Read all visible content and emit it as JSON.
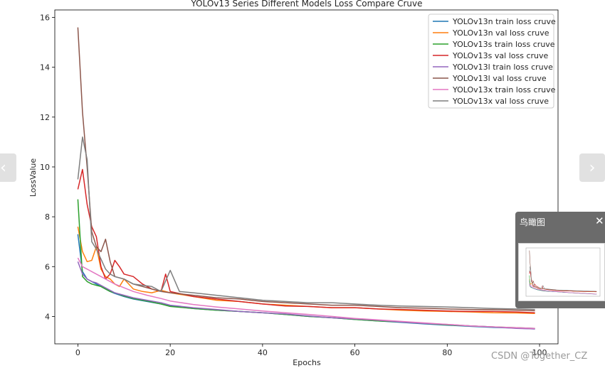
{
  "chart_data": {
    "type": "line",
    "title": "YOLOv13 Series Different Models Loss Compare Cruve",
    "xlabel": "Epochs",
    "ylabel": "LossValue",
    "xlim": [
      -5,
      104
    ],
    "ylim": [
      2.9,
      16.3
    ],
    "xticks": [
      0,
      20,
      40,
      60,
      80,
      100
    ],
    "yticks": [
      4,
      6,
      8,
      10,
      12,
      14,
      16
    ],
    "grid": false,
    "legend_position": "top-right",
    "series": [
      {
        "name": "YOLOv13n train loss cruve",
        "color": "#1f77b4",
        "points": [
          [
            0,
            7.3
          ],
          [
            1,
            5.8
          ],
          [
            2,
            5.5
          ],
          [
            3,
            5.4
          ],
          [
            4,
            5.3
          ],
          [
            5,
            5.2
          ],
          [
            6,
            5.1
          ],
          [
            7,
            5.0
          ],
          [
            8,
            4.92
          ],
          [
            10,
            4.8
          ],
          [
            12,
            4.7
          ],
          [
            15,
            4.6
          ],
          [
            18,
            4.5
          ],
          [
            20,
            4.42
          ],
          [
            25,
            4.32
          ],
          [
            30,
            4.25
          ],
          [
            35,
            4.2
          ],
          [
            40,
            4.15
          ],
          [
            45,
            4.08
          ],
          [
            50,
            4.0
          ],
          [
            55,
            3.95
          ],
          [
            60,
            3.88
          ],
          [
            65,
            3.82
          ],
          [
            70,
            3.76
          ],
          [
            75,
            3.7
          ],
          [
            80,
            3.65
          ],
          [
            85,
            3.6
          ],
          [
            90,
            3.56
          ],
          [
            95,
            3.53
          ],
          [
            99,
            3.5
          ]
        ]
      },
      {
        "name": "YOLOv13n val loss cruve",
        "color": "#ff7f0e",
        "points": [
          [
            0,
            7.6
          ],
          [
            1,
            6.6
          ],
          [
            2,
            6.2
          ],
          [
            3,
            6.25
          ],
          [
            4,
            6.8
          ],
          [
            5,
            5.9
          ],
          [
            6,
            5.6
          ],
          [
            7,
            5.5
          ],
          [
            8,
            5.3
          ],
          [
            9,
            5.2
          ],
          [
            10,
            5.5
          ],
          [
            12,
            5.1
          ],
          [
            14,
            5.0
          ],
          [
            16,
            4.95
          ],
          [
            18,
            5.05
          ],
          [
            20,
            4.95
          ],
          [
            25,
            4.8
          ],
          [
            30,
            4.65
          ],
          [
            35,
            4.6
          ],
          [
            40,
            4.5
          ],
          [
            45,
            4.45
          ],
          [
            50,
            4.4
          ],
          [
            55,
            4.35
          ],
          [
            60,
            4.35
          ],
          [
            65,
            4.3
          ],
          [
            70,
            4.25
          ],
          [
            75,
            4.22
          ],
          [
            80,
            4.2
          ],
          [
            85,
            4.18
          ],
          [
            90,
            4.15
          ],
          [
            95,
            4.14
          ],
          [
            99,
            4.12
          ]
        ]
      },
      {
        "name": "YOLOv13s train loss cruve",
        "color": "#2ca02c",
        "points": [
          [
            0,
            8.7
          ],
          [
            1,
            5.6
          ],
          [
            2,
            5.4
          ],
          [
            3,
            5.3
          ],
          [
            4,
            5.25
          ],
          [
            5,
            5.2
          ],
          [
            6,
            5.1
          ],
          [
            7,
            5.0
          ],
          [
            8,
            4.95
          ],
          [
            10,
            4.82
          ],
          [
            12,
            4.72
          ],
          [
            15,
            4.62
          ],
          [
            18,
            4.5
          ],
          [
            20,
            4.4
          ],
          [
            25,
            4.32
          ],
          [
            30,
            4.25
          ],
          [
            35,
            4.2
          ],
          [
            40,
            4.15
          ],
          [
            45,
            4.08
          ],
          [
            50,
            4.0
          ],
          [
            55,
            3.95
          ],
          [
            60,
            3.88
          ],
          [
            65,
            3.82
          ],
          [
            70,
            3.78
          ],
          [
            75,
            3.72
          ],
          [
            80,
            3.66
          ],
          [
            85,
            3.62
          ],
          [
            90,
            3.58
          ],
          [
            95,
            3.55
          ],
          [
            99,
            3.52
          ]
        ]
      },
      {
        "name": "YOLOv13s val loss cruve",
        "color": "#d62728",
        "points": [
          [
            0,
            9.1
          ],
          [
            1,
            9.9
          ],
          [
            2,
            8.5
          ],
          [
            3,
            7.6
          ],
          [
            4,
            7.2
          ],
          [
            5,
            6.0
          ],
          [
            6,
            5.5
          ],
          [
            7,
            5.7
          ],
          [
            8,
            6.25
          ],
          [
            9,
            6.0
          ],
          [
            10,
            5.7
          ],
          [
            12,
            5.6
          ],
          [
            14,
            5.3
          ],
          [
            16,
            5.1
          ],
          [
            18,
            5.0
          ],
          [
            19,
            5.7
          ],
          [
            20,
            5.0
          ],
          [
            25,
            4.8
          ],
          [
            30,
            4.7
          ],
          [
            35,
            4.6
          ],
          [
            40,
            4.5
          ],
          [
            45,
            4.42
          ],
          [
            50,
            4.4
          ],
          [
            55,
            4.35
          ],
          [
            60,
            4.35
          ],
          [
            65,
            4.3
          ],
          [
            70,
            4.28
          ],
          [
            75,
            4.25
          ],
          [
            80,
            4.22
          ],
          [
            85,
            4.2
          ],
          [
            90,
            4.2
          ],
          [
            95,
            4.18
          ],
          [
            99,
            4.15
          ]
        ]
      },
      {
        "name": "YOLOv13l train loss cruve",
        "color": "#9467bd",
        "points": [
          [
            0,
            6.2
          ],
          [
            1,
            5.7
          ],
          [
            2,
            5.5
          ],
          [
            3,
            5.4
          ],
          [
            4,
            5.35
          ],
          [
            5,
            5.25
          ],
          [
            6,
            5.15
          ],
          [
            7,
            5.05
          ],
          [
            8,
            4.95
          ],
          [
            10,
            4.85
          ],
          [
            12,
            4.75
          ],
          [
            15,
            4.65
          ],
          [
            18,
            4.55
          ],
          [
            20,
            4.45
          ],
          [
            25,
            4.35
          ],
          [
            30,
            4.28
          ],
          [
            35,
            4.2
          ],
          [
            40,
            4.15
          ],
          [
            45,
            4.1
          ],
          [
            50,
            4.02
          ],
          [
            55,
            3.95
          ],
          [
            60,
            3.9
          ],
          [
            65,
            3.85
          ],
          [
            70,
            3.78
          ],
          [
            75,
            3.72
          ],
          [
            80,
            3.68
          ],
          [
            85,
            3.62
          ],
          [
            90,
            3.58
          ],
          [
            95,
            3.52
          ],
          [
            99,
            3.5
          ]
        ]
      },
      {
        "name": "YOLOv13l val loss cruve",
        "color": "#8c564b",
        "points": [
          [
            0,
            15.6
          ],
          [
            1,
            12.2
          ],
          [
            2,
            10.0
          ],
          [
            3,
            7.4
          ],
          [
            4,
            6.8
          ],
          [
            5,
            6.6
          ],
          [
            6,
            7.1
          ],
          [
            7,
            6.2
          ],
          [
            8,
            5.6
          ],
          [
            10,
            5.5
          ],
          [
            12,
            5.3
          ],
          [
            14,
            5.2
          ],
          [
            16,
            5.1
          ],
          [
            18,
            5.0
          ],
          [
            20,
            4.95
          ],
          [
            25,
            4.85
          ],
          [
            30,
            4.75
          ],
          [
            35,
            4.7
          ],
          [
            40,
            4.6
          ],
          [
            45,
            4.55
          ],
          [
            50,
            4.5
          ],
          [
            55,
            4.45
          ],
          [
            60,
            4.45
          ],
          [
            65,
            4.4
          ],
          [
            70,
            4.35
          ],
          [
            75,
            4.33
          ],
          [
            80,
            4.3
          ],
          [
            85,
            4.28
          ],
          [
            90,
            4.27
          ],
          [
            95,
            4.25
          ],
          [
            99,
            4.23
          ]
        ]
      },
      {
        "name": "YOLOv13x train loss cruve",
        "color": "#e377c2",
        "points": [
          [
            0,
            6.35
          ],
          [
            1,
            6.0
          ],
          [
            2,
            5.9
          ],
          [
            3,
            5.8
          ],
          [
            4,
            5.7
          ],
          [
            5,
            5.6
          ],
          [
            6,
            5.5
          ],
          [
            7,
            5.4
          ],
          [
            8,
            5.3
          ],
          [
            10,
            5.15
          ],
          [
            12,
            5.0
          ],
          [
            15,
            4.85
          ],
          [
            18,
            4.72
          ],
          [
            20,
            4.62
          ],
          [
            25,
            4.48
          ],
          [
            30,
            4.38
          ],
          [
            35,
            4.3
          ],
          [
            40,
            4.22
          ],
          [
            45,
            4.15
          ],
          [
            50,
            4.08
          ],
          [
            55,
            4.0
          ],
          [
            60,
            3.92
          ],
          [
            65,
            3.86
          ],
          [
            70,
            3.8
          ],
          [
            75,
            3.74
          ],
          [
            80,
            3.68
          ],
          [
            85,
            3.62
          ],
          [
            90,
            3.58
          ],
          [
            95,
            3.55
          ],
          [
            99,
            3.52
          ]
        ]
      },
      {
        "name": "YOLOv13x val loss cruve",
        "color": "#7f7f7f",
        "points": [
          [
            0,
            9.5
          ],
          [
            1,
            11.2
          ],
          [
            2,
            10.3
          ],
          [
            3,
            7.0
          ],
          [
            4,
            6.7
          ],
          [
            5,
            6.3
          ],
          [
            6,
            5.9
          ],
          [
            7,
            5.7
          ],
          [
            8,
            5.6
          ],
          [
            10,
            5.5
          ],
          [
            12,
            5.3
          ],
          [
            14,
            5.25
          ],
          [
            16,
            5.2
          ],
          [
            18,
            5.0
          ],
          [
            20,
            5.85
          ],
          [
            22,
            5.0
          ],
          [
            25,
            4.95
          ],
          [
            30,
            4.85
          ],
          [
            35,
            4.75
          ],
          [
            40,
            4.65
          ],
          [
            45,
            4.6
          ],
          [
            50,
            4.55
          ],
          [
            55,
            4.55
          ],
          [
            60,
            4.5
          ],
          [
            65,
            4.45
          ],
          [
            70,
            4.42
          ],
          [
            75,
            4.4
          ],
          [
            80,
            4.38
          ],
          [
            85,
            4.35
          ],
          [
            90,
            4.32
          ],
          [
            95,
            4.3
          ],
          [
            99,
            4.28
          ]
        ]
      }
    ]
  },
  "ui": {
    "prev_arrow": "‹",
    "next_arrow": "›",
    "birdseye_title": "鸟瞰图",
    "birdseye_close": "✕",
    "watermark": "CSDN @Together_CZ"
  }
}
